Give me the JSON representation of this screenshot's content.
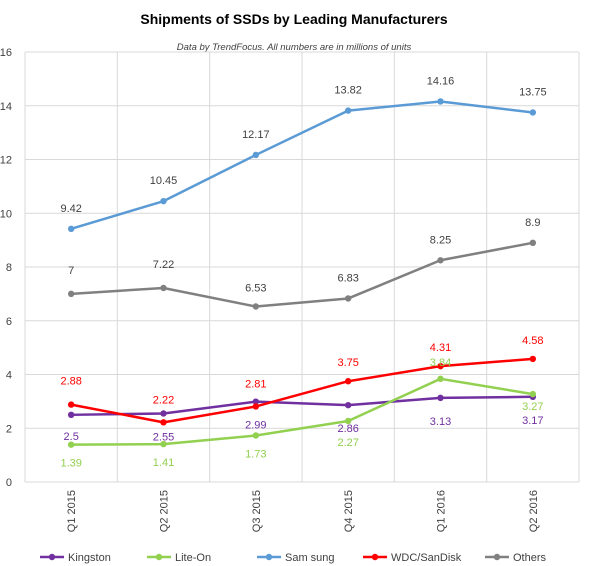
{
  "chart_data": {
    "type": "line",
    "title": "Shipments of SSDs by Leading Manufacturers",
    "subtitle": "Data by TrendFocus. All numbers are in millions of units",
    "xlabel": "",
    "ylabel": "",
    "categories": [
      "Q1 2015",
      "Q2 2015",
      "Q3 2015",
      "Q4 2015",
      "Q1 2016",
      "Q2 2016"
    ],
    "ylim": [
      0,
      16
    ],
    "yticks": [
      0,
      2,
      4,
      6,
      8,
      10,
      12,
      14,
      16
    ],
    "grid": true,
    "legend_position": "bottom",
    "series": [
      {
        "name": "Kingston",
        "key": "kingston",
        "color": "#7030a0",
        "values": [
          2.5,
          2.55,
          2.99,
          2.86,
          3.13,
          3.17
        ],
        "labels": [
          "2.5",
          "2.55",
          "2.99",
          "2.86",
          "3.13",
          "3.17"
        ]
      },
      {
        "name": "Lite-On",
        "key": "liteon",
        "color": "#92d050",
        "values": [
          1.39,
          1.41,
          1.73,
          2.27,
          3.84,
          3.27
        ],
        "labels": [
          "1.39",
          "1.41",
          "1.73",
          "2.27",
          "3.84",
          "3.27"
        ]
      },
      {
        "name": "Sam sung",
        "key": "samsung",
        "color": "#5b9bd5",
        "values": [
          9.42,
          10.45,
          12.17,
          13.82,
          14.16,
          13.75
        ],
        "labels": [
          "9.42",
          "10.45",
          "12.17",
          "13.82",
          "14.16",
          "13.75"
        ]
      },
      {
        "name": "WDC/SanDisk",
        "key": "wdc",
        "color": "#ff0000",
        "values": [
          2.88,
          2.22,
          2.81,
          3.75,
          4.31,
          4.58
        ],
        "labels": [
          "2.88",
          "2.22",
          "2.81",
          "3.75",
          "4.31",
          "4.58"
        ]
      },
      {
        "name": "Others",
        "key": "others",
        "color": "#808080",
        "values": [
          7,
          7.22,
          6.53,
          6.83,
          8.25,
          8.9
        ],
        "labels": [
          "7",
          "7.22",
          "6.53",
          "6.83",
          "8.25",
          "8.9"
        ]
      }
    ]
  }
}
